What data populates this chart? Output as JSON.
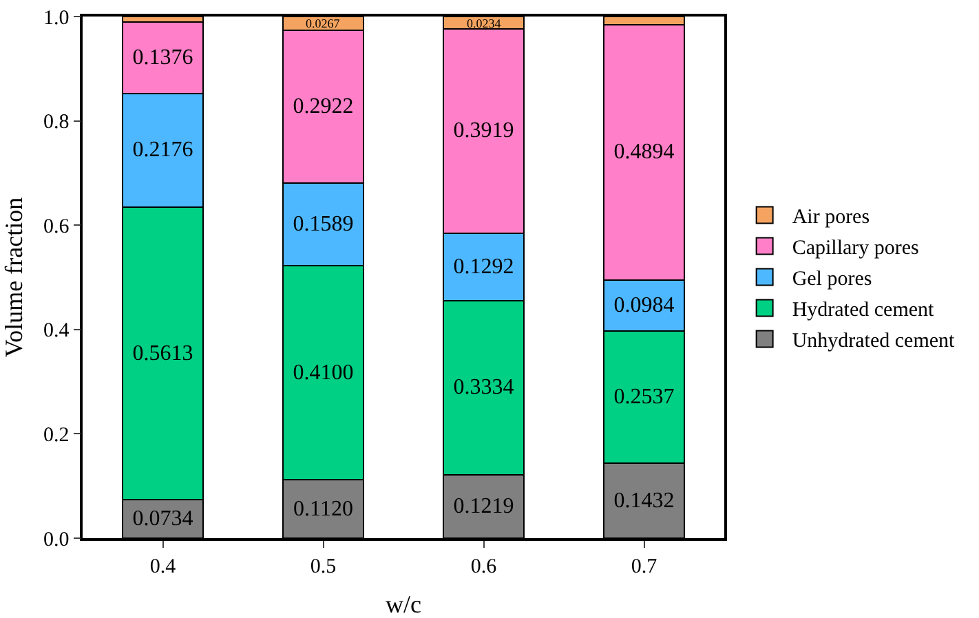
{
  "chart_data": {
    "type": "bar",
    "stacked": true,
    "xlabel": "w/c",
    "ylabel": "Volume fraction",
    "categories": [
      "0.4",
      "0.5",
      "0.6",
      "0.7"
    ],
    "series": [
      {
        "name": "Unhydrated cement",
        "color": "#808080",
        "values": [
          0.0734,
          0.112,
          0.1219,
          0.1432
        ],
        "value_labels": [
          "0.0734",
          "0.1120",
          "0.1219",
          "0.1432"
        ]
      },
      {
        "name": "Hydrated cement",
        "color": "#00d084",
        "values": [
          0.5613,
          0.41,
          0.3334,
          0.2537
        ],
        "value_labels": [
          "0.5613",
          "0.4100",
          "0.3334",
          "0.2537"
        ]
      },
      {
        "name": "Gel pores",
        "color": "#4db8ff",
        "values": [
          0.2176,
          0.1589,
          0.1292,
          0.0984
        ],
        "value_labels": [
          "0.2176",
          "0.1589",
          "0.1292",
          "0.0984"
        ]
      },
      {
        "name": "Capillary pores",
        "color": "#ff80c8",
        "values": [
          0.1376,
          0.2922,
          0.3919,
          0.4894
        ],
        "value_labels": [
          "0.1376",
          "0.2922",
          "0.3919",
          "0.4894"
        ]
      },
      {
        "name": "Air pores",
        "color": "#f4a460",
        "values": [
          0.0101,
          0.0267,
          0.0234,
          0.0153
        ],
        "value_labels": [
          null,
          "0.0267",
          "0.0234",
          null
        ]
      }
    ],
    "ylim": [
      0,
      1
    ],
    "yticks": [
      {
        "value": 0,
        "label": "0.0"
      },
      {
        "value": 0.2,
        "label": "0.2"
      },
      {
        "value": 0.4,
        "label": "0.4"
      },
      {
        "value": 0.6,
        "label": "0.6"
      },
      {
        "value": 0.8,
        "label": "0.8"
      },
      {
        "value": 1,
        "label": "1.0"
      }
    ],
    "grid": false,
    "legend": "right"
  }
}
